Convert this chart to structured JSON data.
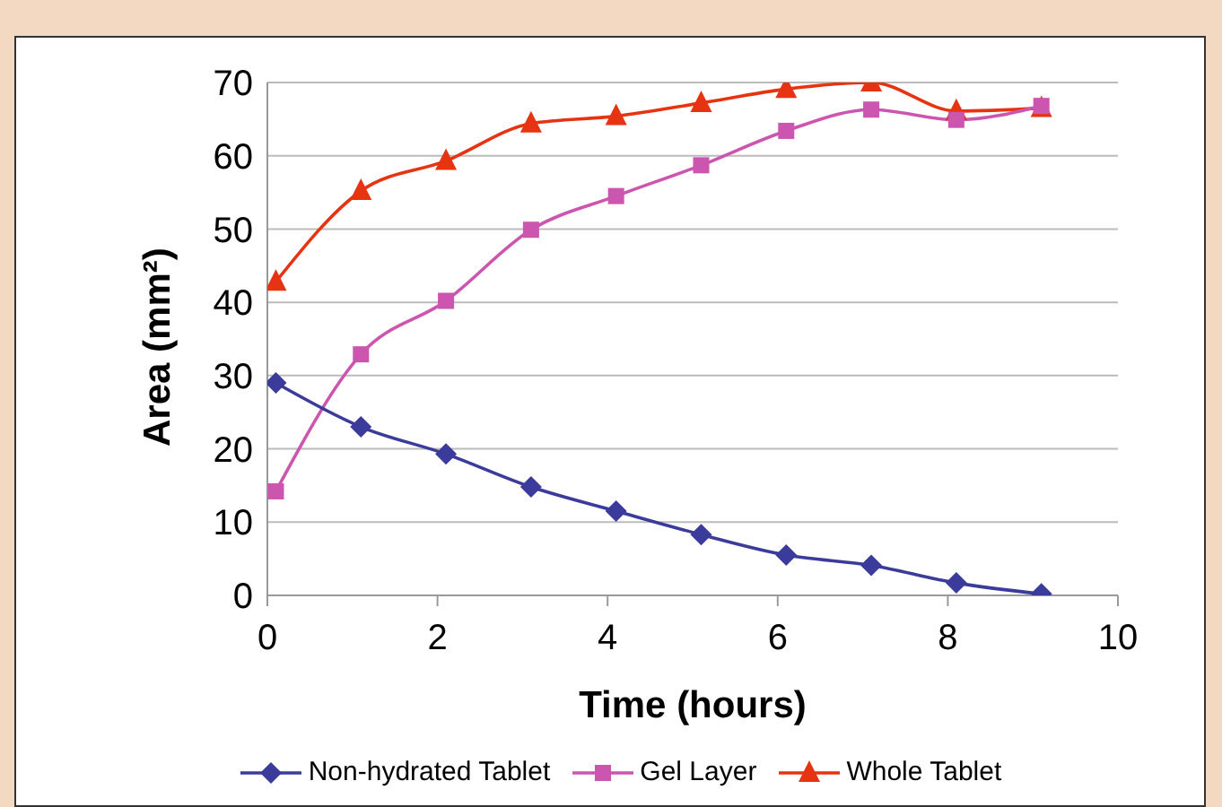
{
  "chart_data": {
    "type": "line",
    "xlabel": "Time (hours)",
    "ylabel": "Area (mm²)",
    "x": [
      0.1,
      1.1,
      2.1,
      3.1,
      4.1,
      5.1,
      6.1,
      7.1,
      8.1,
      9.1
    ],
    "series": [
      {
        "name": "Non-hydrated Tablet",
        "color": "#3b3b9c",
        "marker": "diamond",
        "values": [
          29,
          23,
          19.3,
          14.8,
          11.5,
          8.3,
          5.5,
          4.1,
          1.7,
          0.2
        ]
      },
      {
        "name": "Gel Layer",
        "color": "#cc55b0",
        "marker": "square",
        "values": [
          14.2,
          32.9,
          40.2,
          49.9,
          54.5,
          58.7,
          63.4,
          66.3,
          64.9,
          66.8
        ]
      },
      {
        "name": "Whole Tablet",
        "color": "#e63312",
        "marker": "triangle",
        "values": [
          42.8,
          55.2,
          59.3,
          64.4,
          65.4,
          67.2,
          69.1,
          70,
          66.1,
          66.5
        ]
      }
    ],
    "xlim": [
      0,
      10
    ],
    "xticks": [
      0,
      2,
      4,
      6,
      8,
      10
    ],
    "ylim": [
      0,
      70
    ],
    "yticks": [
      0,
      10,
      20,
      30,
      40,
      50,
      60,
      70
    ],
    "grid": "y",
    "legend": "bottom",
    "line_style": "solid"
  }
}
